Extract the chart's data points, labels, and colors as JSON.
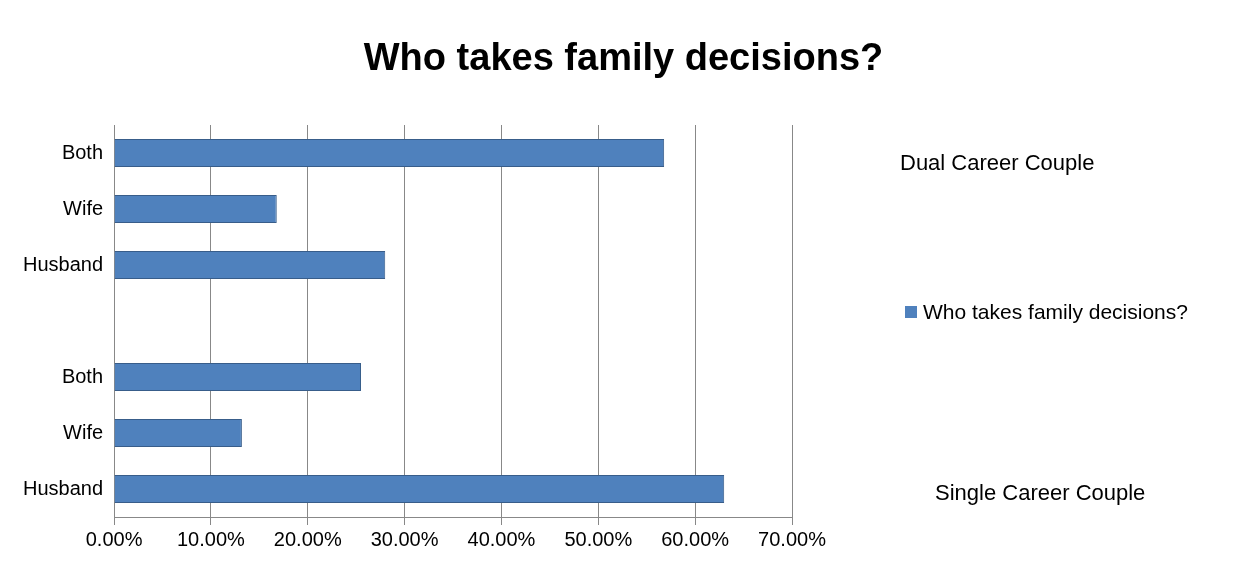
{
  "chart_data": {
    "type": "bar",
    "orientation": "horizontal",
    "title": "Who takes family decisions?",
    "categories": [
      "Both",
      "Wife",
      "Husband",
      null,
      "Both",
      "Wife",
      "Husband"
    ],
    "series": [
      {
        "name": "Who takes family decisions?",
        "color": "#4f81bd",
        "values": [
          56.8,
          16.8,
          28,
          null,
          25.5,
          13.2,
          63
        ]
      }
    ],
    "xlim": [
      0,
      70
    ],
    "xticks": [
      {
        "value": 0,
        "label": "0.00%"
      },
      {
        "value": 10,
        "label": "10.00%"
      },
      {
        "value": 20,
        "label": "20.00%"
      },
      {
        "value": 30,
        "label": "30.00%"
      },
      {
        "value": 40,
        "label": "40.00%"
      },
      {
        "value": 50,
        "label": "50.00%"
      },
      {
        "value": 60,
        "label": "60.00%"
      },
      {
        "value": 70,
        "label": "70.00%"
      }
    ],
    "grid": "x",
    "legend": "right",
    "annotations": [
      "Dual Career Couple",
      "Single Career Couple"
    ]
  }
}
